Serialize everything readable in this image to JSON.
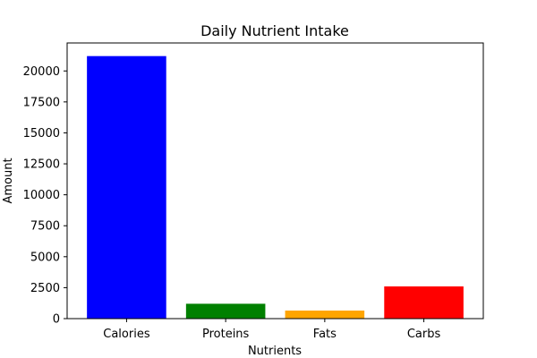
{
  "chart_data": {
    "type": "bar",
    "title": "Daily Nutrient Intake",
    "xlabel": "Nutrients",
    "ylabel": "Amount",
    "categories": [
      "Calories",
      "Proteins",
      "Fats",
      "Carbs"
    ],
    "values": [
      21200,
      1200,
      650,
      2600
    ],
    "colors": [
      "#0000ff",
      "#008000",
      "#ffa500",
      "#ff0000"
    ],
    "ylim": [
      0,
      22260
    ],
    "yticks": [
      0,
      2500,
      5000,
      7500,
      10000,
      12500,
      15000,
      17500,
      20000
    ],
    "grid": false,
    "legend": "none"
  }
}
